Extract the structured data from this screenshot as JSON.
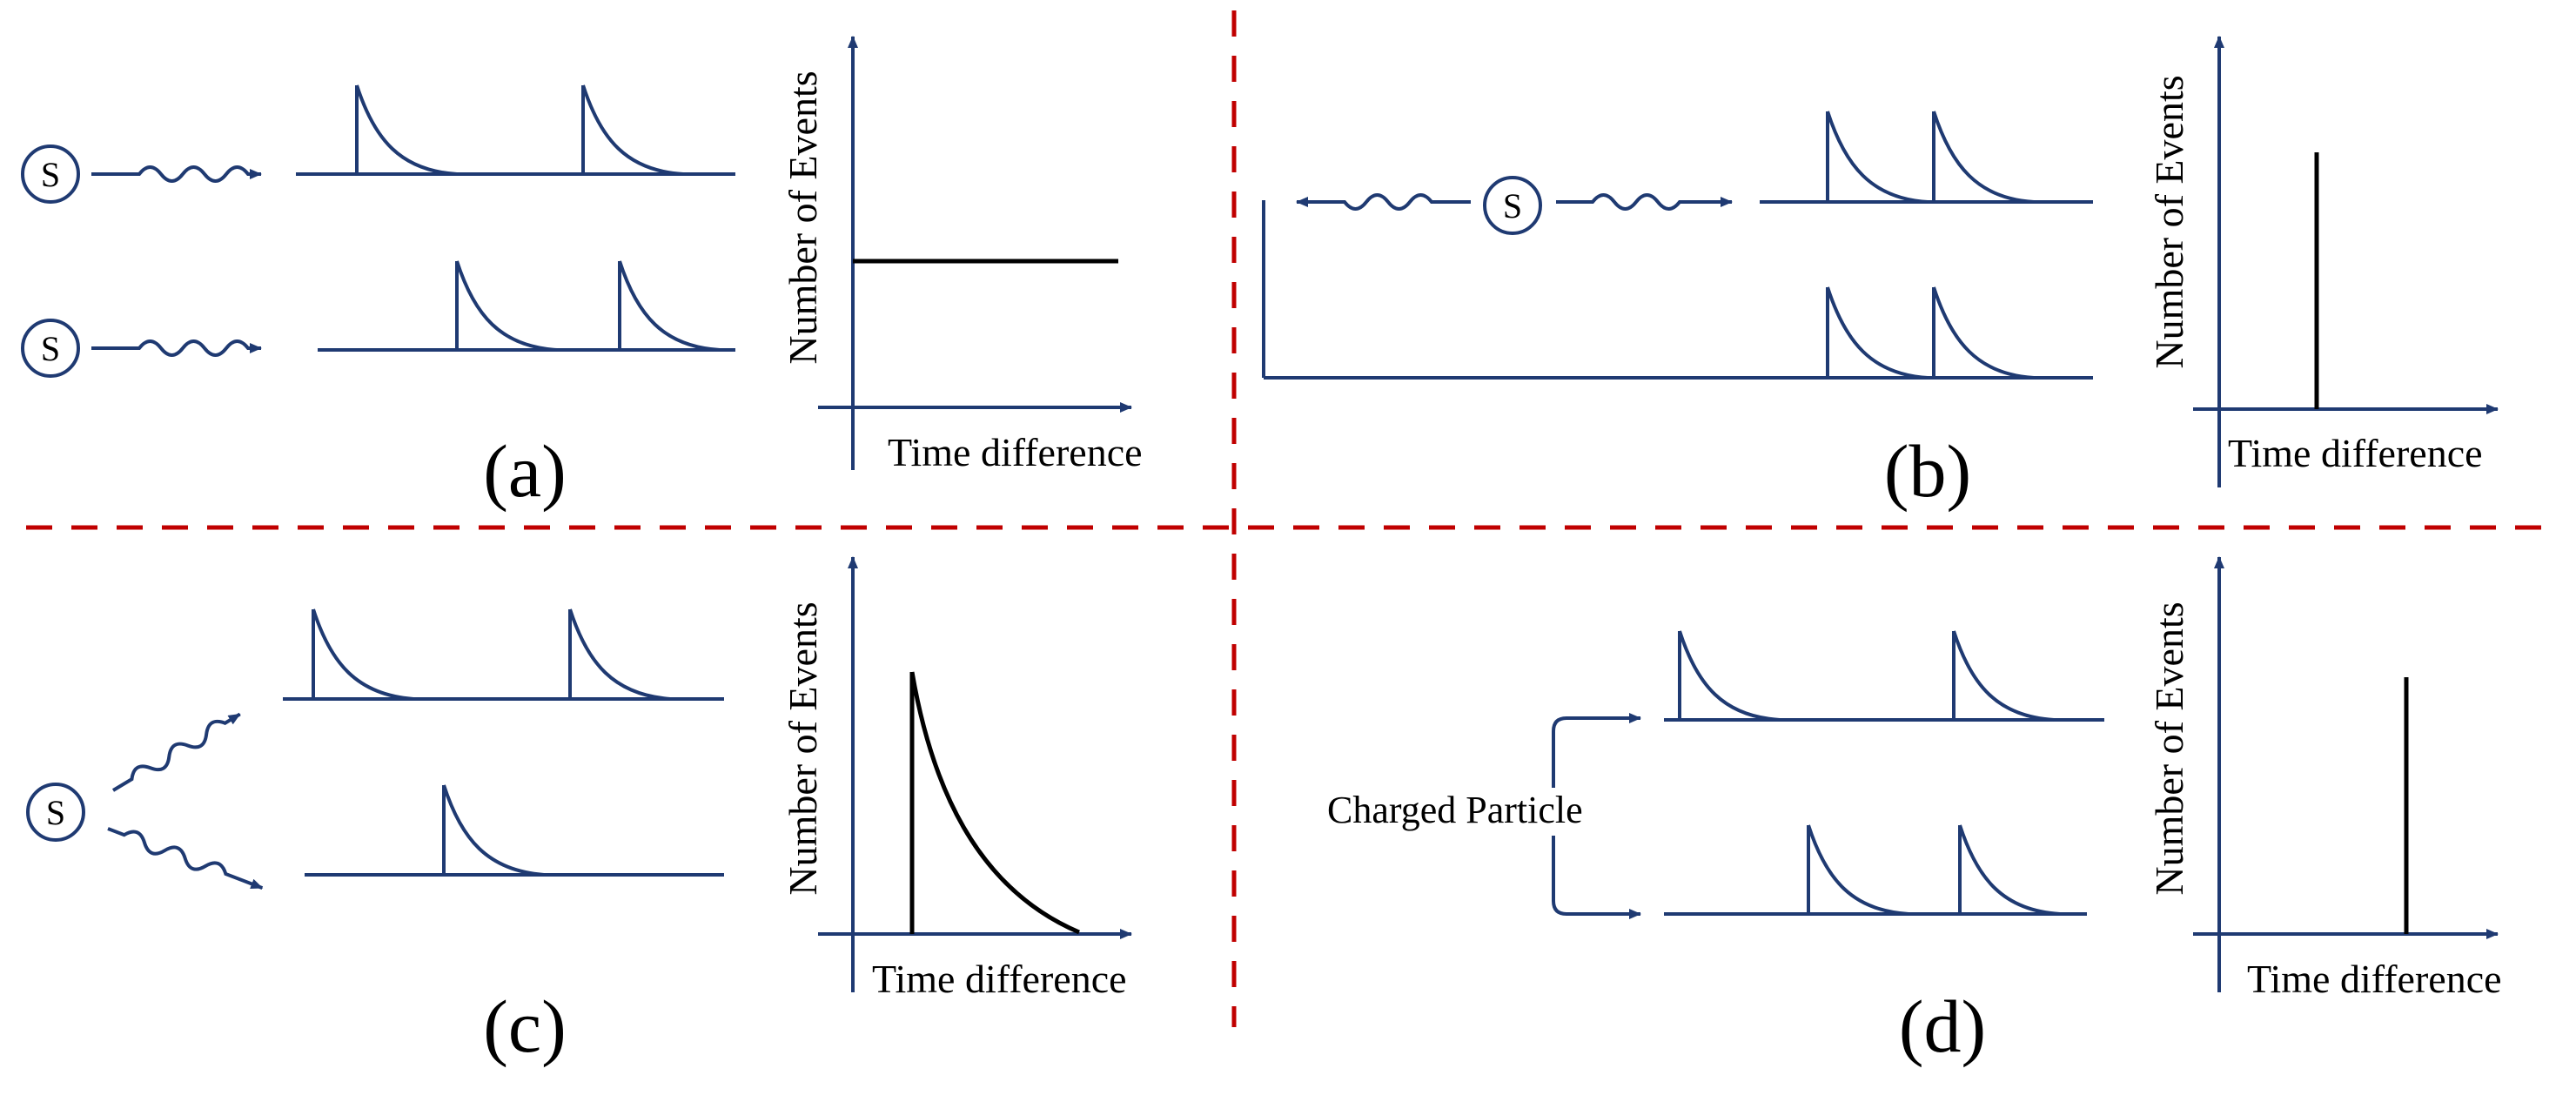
{
  "colors": {
    "signal": "#1F3A72",
    "divider": "#C00000",
    "histogram": "#000000",
    "text": "#000000"
  },
  "source_symbol": "S",
  "panels": {
    "a": {
      "label": "(a)",
      "y_axis_label": "Number of Events",
      "x_axis_label": "Time difference",
      "histogram_shape": "flat"
    },
    "b": {
      "label": "(b)",
      "y_axis_label": "Number of Events",
      "x_axis_label": "Time difference",
      "histogram_shape": "single-peak"
    },
    "c": {
      "label": "(c)",
      "y_axis_label": "Number of Events",
      "x_axis_label": "Time difference",
      "histogram_shape": "exponential-decay"
    },
    "d": {
      "label": "(d)",
      "y_axis_label": "Number of Events",
      "x_axis_label": "Time difference",
      "histogram_shape": "single-peak",
      "source_label": "Charged Particle"
    }
  }
}
